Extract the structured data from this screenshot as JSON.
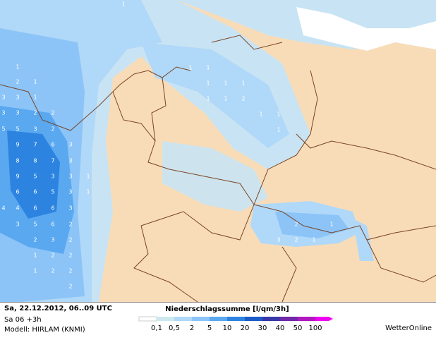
{
  "header": {
    "date": "Sa, 22.12.2012, 06..09 UTC",
    "step": "Sa 06 +3h",
    "model": "Modell: HIRLAM (KNMI)"
  },
  "legend": {
    "title": "Niederschlagssumme [l/qm/3h]",
    "items": [
      {
        "label": "0,1",
        "color": "#cce9ee"
      },
      {
        "label": "0,5",
        "color": "#b0d8f8"
      },
      {
        "label": "2",
        "color": "#8cc4f8"
      },
      {
        "label": "5",
        "color": "#5aa8f0"
      },
      {
        "label": "10",
        "color": "#2c84e0"
      },
      {
        "label": "20",
        "color": "#1c5cc8"
      },
      {
        "label": "30",
        "color": "#3838a8"
      },
      {
        "label": "40",
        "color": "#7028a8"
      },
      {
        "label": "50",
        "color": "#b018c0"
      },
      {
        "label": "100",
        "color": "#f000f0"
      }
    ]
  },
  "brand": "WetterOnline",
  "map_labels": [
    "1",
    "1",
    "2",
    "1",
    "3",
    "3",
    "1",
    "3",
    "3",
    "2",
    "2",
    "5",
    "5",
    "3",
    "2",
    "9",
    "7",
    "6",
    "3",
    "8",
    "8",
    "7",
    "3",
    "9",
    "5",
    "3",
    "3",
    "1",
    "6",
    "6",
    "5",
    "3",
    "1",
    "4",
    "4",
    "6",
    "6",
    "3",
    "3",
    "5",
    "6",
    "2",
    "2",
    "3",
    "2",
    "1",
    "2",
    "2",
    "1",
    "2",
    "2",
    "2",
    "1",
    "1",
    "1",
    "1",
    "1",
    "1",
    "1",
    "2",
    "1",
    "1",
    "1",
    "2",
    "1",
    "3",
    "2",
    "1"
  ]
}
